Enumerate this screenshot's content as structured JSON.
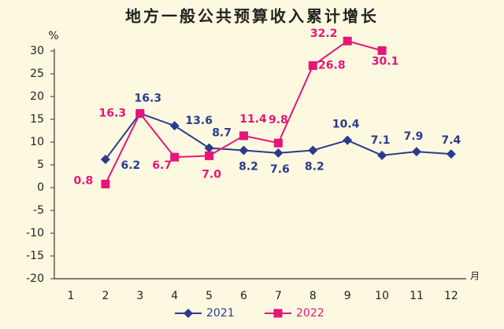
{
  "chart_data": {
    "type": "line",
    "title": "地方一般公共预算收入累计增长",
    "y_unit": "%",
    "x_unit": "月",
    "categories": [
      "1",
      "2",
      "3",
      "4",
      "5",
      "6",
      "7",
      "8",
      "9",
      "10",
      "11",
      "12"
    ],
    "series": [
      {
        "name": "2021",
        "color": "#2b3a8f",
        "marker": "diamond",
        "values": [
          null,
          6.2,
          16.3,
          13.6,
          8.7,
          8.2,
          7.6,
          8.2,
          10.4,
          7.1,
          7.9,
          7.4
        ],
        "value_labels": [
          null,
          "6.2",
          "16.3",
          "13.6",
          "8.7",
          "8.2",
          "7.6",
          "8.2",
          "10.4",
          "7.1",
          "7.9",
          "7.4"
        ]
      },
      {
        "name": "2022",
        "color": "#e5157a",
        "marker": "square",
        "values": [
          null,
          0.8,
          16.3,
          6.7,
          7.0,
          11.4,
          9.8,
          26.8,
          32.2,
          30.1,
          null,
          null
        ],
        "value_labels": [
          null,
          "0.8",
          "16.3",
          "6.7",
          "7.0",
          "11.4",
          "9.8",
          "26.8",
          "32.2",
          "30.1",
          null,
          null
        ]
      }
    ],
    "ylim": [
      -20,
      30
    ],
    "yticks": [
      -20,
      -15,
      -10,
      -5,
      0,
      5,
      10,
      15,
      20,
      25,
      30
    ],
    "grid": false,
    "legend": "bottom"
  }
}
